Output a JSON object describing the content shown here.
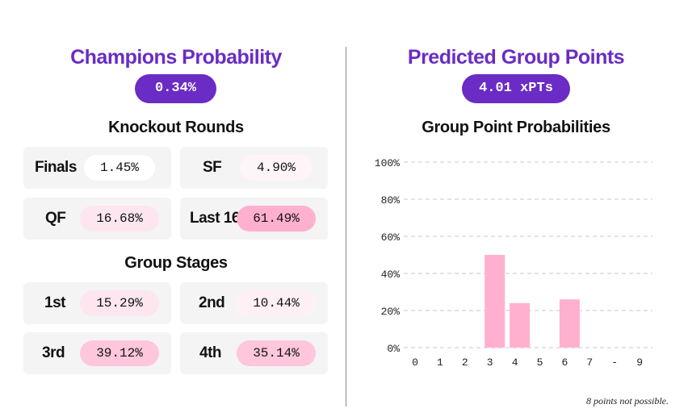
{
  "left": {
    "title": "Champions Probability",
    "champion_prob": "0.34%",
    "knockout_title": "Knockout Rounds",
    "knockout": [
      {
        "label": "Finals",
        "value": "1.45%",
        "pct": 1.45
      },
      {
        "label": "SF",
        "value": "4.90%",
        "pct": 4.9
      },
      {
        "label": "QF",
        "value": "16.68%",
        "pct": 16.68
      },
      {
        "label": "Last 16",
        "value": "61.49%",
        "pct": 61.49
      }
    ],
    "group_title": "Group Stages",
    "group": [
      {
        "label": "1st",
        "value": "15.29%",
        "pct": 15.29
      },
      {
        "label": "2nd",
        "value": "10.44%",
        "pct": 10.44
      },
      {
        "label": "3rd",
        "value": "39.12%",
        "pct": 39.12
      },
      {
        "label": "4th",
        "value": "35.14%",
        "pct": 35.14
      }
    ]
  },
  "right": {
    "title": "Predicted Group Points",
    "xpts": "4.01 xPTs",
    "chart_title": "Group Point Probabilities",
    "note": "8 points not possible."
  },
  "colors": {
    "accent": "#6a2cc4",
    "bar": "#ffb0cf",
    "pill_light": "#fde6ef",
    "pill_mid": "#ffc6dc",
    "pill_strong": "#ffb0cf"
  },
  "chart_data": {
    "type": "bar",
    "title": "Group Point Probabilities",
    "categories": [
      "0",
      "1",
      "2",
      "3",
      "4",
      "5",
      "6",
      "7",
      "-",
      "9"
    ],
    "values": [
      0,
      0,
      0,
      50,
      24,
      0,
      26,
      0,
      0,
      0
    ],
    "ylim": [
      0,
      100
    ],
    "yticks": [
      0,
      20,
      40,
      60,
      80,
      100
    ],
    "ytick_labels": [
      "0%",
      "20%",
      "40%",
      "60%",
      "80%",
      "100%"
    ],
    "grid": true,
    "xlabel": "",
    "ylabel": ""
  }
}
